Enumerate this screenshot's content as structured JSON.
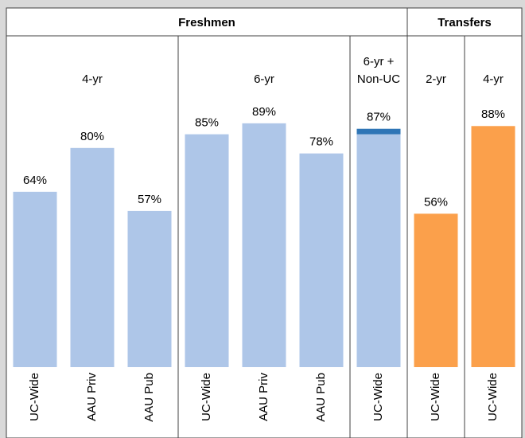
{
  "chart_data": {
    "type": "bar",
    "ylim": [
      0,
      100
    ],
    "groups": [
      {
        "label": "Freshmen",
        "subgroups": [
          {
            "label": [
              "4-yr"
            ],
            "categories": [
              "UC-Wide",
              "AAU Priv",
              "AAU Pub"
            ],
            "series": [
              {
                "color": "#aec6e8",
                "values": [
                  64,
                  80,
                  57
                ]
              }
            ],
            "value_labels": [
              "64%",
              "80%",
              "57%"
            ]
          },
          {
            "label": [
              "6-yr"
            ],
            "categories": [
              "UC-Wide",
              "AAU Priv",
              "AAU Pub"
            ],
            "series": [
              {
                "color": "#aec6e8",
                "values": [
                  85,
                  89,
                  78
                ]
              }
            ],
            "value_labels": [
              "85%",
              "89%",
              "78%"
            ]
          },
          {
            "label": [
              "6-yr +",
              "Non-UC"
            ],
            "categories": [
              "UC-Wide"
            ],
            "series": [
              {
                "color": "#aec6e8",
                "values": [
                  85
                ]
              },
              {
                "color": "#2e75b6",
                "values": [
                  2
                ]
              }
            ],
            "value_labels": [
              "87%"
            ]
          }
        ]
      },
      {
        "label": "Transfers",
        "subgroups": [
          {
            "label": [
              "2-yr"
            ],
            "categories": [
              "UC-Wide"
            ],
            "series": [
              {
                "color": "#fba04b",
                "values": [
                  56
                ]
              }
            ],
            "value_labels": [
              "56%"
            ]
          },
          {
            "label": [
              "4-yr"
            ],
            "categories": [
              "UC-Wide"
            ],
            "series": [
              {
                "color": "#fba04b",
                "values": [
                  88
                ]
              }
            ],
            "value_labels": [
              "88%"
            ]
          }
        ]
      }
    ]
  }
}
